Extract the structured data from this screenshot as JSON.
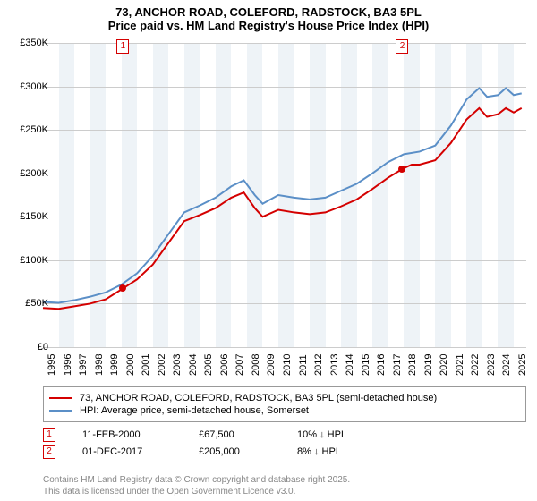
{
  "title_line1": "73, ANCHOR ROAD, COLEFORD, RADSTOCK, BA3 5PL",
  "title_line2": "Price paid vs. HM Land Registry's House Price Index (HPI)",
  "chart": {
    "type": "line",
    "background_color": "#ffffff",
    "plot_strip_color": "#eef3f7",
    "grid_color": "#cccccc",
    "x_range": [
      1995,
      2025.8
    ],
    "x_ticks": [
      1995,
      1996,
      1997,
      1998,
      1999,
      2000,
      2001,
      2002,
      2003,
      2004,
      2005,
      2006,
      2007,
      2008,
      2009,
      2010,
      2011,
      2012,
      2013,
      2014,
      2015,
      2016,
      2017,
      2018,
      2019,
      2020,
      2021,
      2022,
      2023,
      2024,
      2025
    ],
    "y_range": [
      0,
      350000
    ],
    "y_ticks": [
      0,
      50000,
      100000,
      150000,
      200000,
      250000,
      300000,
      350000
    ],
    "y_tick_labels": [
      "£0",
      "£50K",
      "£100K",
      "£150K",
      "£200K",
      "£250K",
      "£300K",
      "£350K"
    ],
    "axis_fontsize": 11,
    "series": [
      {
        "name": "73, ANCHOR ROAD, COLEFORD, RADSTOCK, BA3 5PL (semi-detached house)",
        "color": "#d40000",
        "line_width": 2,
        "data": [
          [
            1995,
            45000
          ],
          [
            1996,
            44000
          ],
          [
            1997,
            47000
          ],
          [
            1998,
            50000
          ],
          [
            1999,
            55000
          ],
          [
            2000.1,
            67500
          ],
          [
            2001,
            78000
          ],
          [
            2002,
            95000
          ],
          [
            2003,
            120000
          ],
          [
            2004,
            145000
          ],
          [
            2005,
            152000
          ],
          [
            2006,
            160000
          ],
          [
            2007,
            172000
          ],
          [
            2007.8,
            178000
          ],
          [
            2008.5,
            160000
          ],
          [
            2009,
            150000
          ],
          [
            2010,
            158000
          ],
          [
            2011,
            155000
          ],
          [
            2012,
            153000
          ],
          [
            2013,
            155000
          ],
          [
            2014,
            162000
          ],
          [
            2015,
            170000
          ],
          [
            2016,
            182000
          ],
          [
            2017,
            195000
          ],
          [
            2017.9,
            205000
          ],
          [
            2018.5,
            210000
          ],
          [
            2019,
            210000
          ],
          [
            2020,
            215000
          ],
          [
            2021,
            235000
          ],
          [
            2022,
            262000
          ],
          [
            2022.8,
            275000
          ],
          [
            2023.3,
            265000
          ],
          [
            2024,
            268000
          ],
          [
            2024.5,
            275000
          ],
          [
            2025,
            270000
          ],
          [
            2025.5,
            275000
          ]
        ]
      },
      {
        "name": "HPI: Average price, semi-detached house, Somerset",
        "color": "#5b8fc7",
        "line_width": 2,
        "data": [
          [
            1995,
            52000
          ],
          [
            1996,
            51000
          ],
          [
            1997,
            54000
          ],
          [
            1998,
            58000
          ],
          [
            1999,
            63000
          ],
          [
            2000,
            72000
          ],
          [
            2001,
            85000
          ],
          [
            2002,
            105000
          ],
          [
            2003,
            130000
          ],
          [
            2004,
            155000
          ],
          [
            2005,
            163000
          ],
          [
            2006,
            172000
          ],
          [
            2007,
            185000
          ],
          [
            2007.8,
            192000
          ],
          [
            2008.5,
            175000
          ],
          [
            2009,
            165000
          ],
          [
            2010,
            175000
          ],
          [
            2011,
            172000
          ],
          [
            2012,
            170000
          ],
          [
            2013,
            172000
          ],
          [
            2014,
            180000
          ],
          [
            2015,
            188000
          ],
          [
            2016,
            200000
          ],
          [
            2017,
            213000
          ],
          [
            2018,
            222000
          ],
          [
            2019,
            225000
          ],
          [
            2020,
            232000
          ],
          [
            2021,
            255000
          ],
          [
            2022,
            285000
          ],
          [
            2022.8,
            298000
          ],
          [
            2023.3,
            288000
          ],
          [
            2024,
            290000
          ],
          [
            2024.5,
            298000
          ],
          [
            2025,
            290000
          ],
          [
            2025.5,
            292000
          ]
        ]
      }
    ],
    "sale_points": [
      {
        "idx": "1",
        "x": 2000.1,
        "y": 67500,
        "date": "11-FEB-2000",
        "price": "£67,500",
        "delta": "10% ↓ HPI",
        "marker_color": "#d40000"
      },
      {
        "idx": "2",
        "x": 2017.9,
        "y": 205000,
        "date": "01-DEC-2017",
        "price": "£205,000",
        "delta": "8% ↓ HPI",
        "marker_color": "#d40000"
      }
    ]
  },
  "footer_line1": "Contains HM Land Registry data © Crown copyright and database right 2025.",
  "footer_line2": "This data is licensed under the Open Government Licence v3.0."
}
